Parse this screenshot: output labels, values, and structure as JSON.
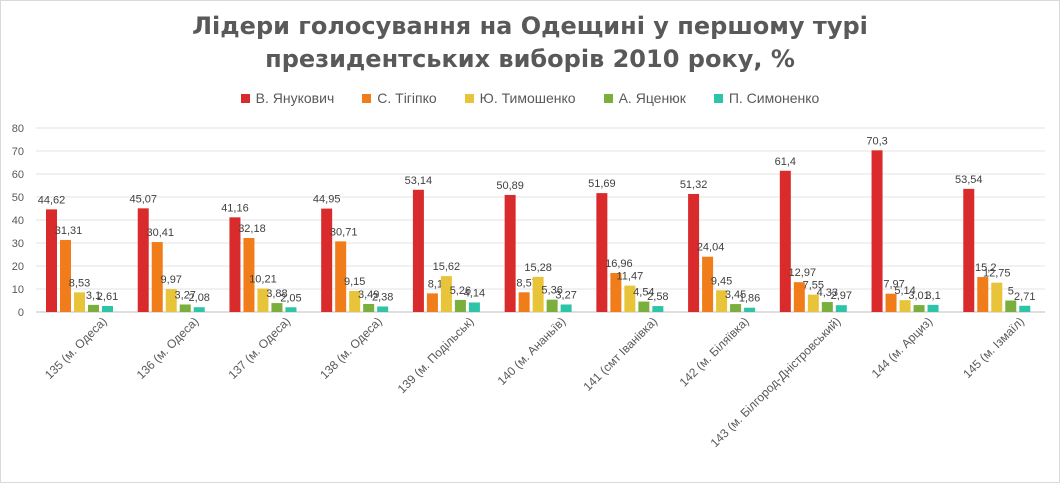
{
  "chart_data": {
    "type": "bar",
    "title_line1": "Лідери голосування на Одещині у першому турі",
    "title_line2": "президентських виборів 2010 року, %",
    "categories": [
      "135 (м. Одеса)",
      "136 (м. Одеса)",
      "137 (м. Одеса)",
      "138 (м. Одеса)",
      "139 (м. Подільськ)",
      "140 (м. Ананьїв)",
      "141 (смт Іванівка)",
      "142 (м. Біляївка)",
      "143 (м. Білгород-Дністровський)",
      "144 (м. Арциз)",
      "145 (м. Ізмаїл)"
    ],
    "series": [
      {
        "name": "В. Янукович",
        "color": "#d92b2b",
        "values": [
          44.62,
          45.07,
          41.16,
          44.95,
          53.14,
          50.89,
          51.69,
          51.32,
          61.4,
          70.3,
          53.54
        ]
      },
      {
        "name": "С. Тігіпко",
        "color": "#f07d1a",
        "values": [
          31.31,
          30.41,
          32.18,
          30.71,
          8.1,
          8.57,
          16.96,
          24.04,
          12.97,
          7.97,
          15.2
        ]
      },
      {
        "name": "Ю. Тимошенко",
        "color": "#e8c43a",
        "values": [
          8.53,
          9.97,
          10.21,
          9.15,
          15.62,
          15.28,
          11.47,
          9.45,
          7.55,
          5.14,
          12.75
        ]
      },
      {
        "name": "А. Яценюк",
        "color": "#7aae3d",
        "values": [
          3.1,
          3.27,
          3.88,
          3.49,
          5.26,
          5.36,
          4.54,
          3.45,
          4.33,
          3.01,
          5
        ]
      },
      {
        "name": "П. Симоненко",
        "color": "#2ec4a8",
        "values": [
          2.61,
          2.08,
          2.05,
          2.38,
          4.14,
          3.27,
          2.58,
          1.86,
          2.97,
          3.1,
          2.71
        ]
      }
    ],
    "labels": [
      [
        "44,62",
        "45,07",
        "41,16",
        "44,95",
        "53,14",
        "50,89",
        "51,69",
        "51,32",
        "61,4",
        "70,3",
        "53,54"
      ],
      [
        "31,31",
        "30,41",
        "32,18",
        "30,71",
        "8,1",
        "8,57",
        "16,96",
        "24,04",
        "12,97",
        "7,97",
        "15,2"
      ],
      [
        "8,53",
        "9,97",
        "10,21",
        "9,15",
        "15,62",
        "15,28",
        "11,47",
        "9,45",
        "7,55",
        "5,14",
        "12,75"
      ],
      [
        "3,1",
        "3,27",
        "3,88",
        "3,49",
        "5,26",
        "5,36",
        "4,54",
        "3,45",
        "4,33",
        "3,01",
        "5"
      ],
      [
        "2,61",
        "2,08",
        "2,05",
        "2,38",
        "4,14",
        "3,27",
        "2,58",
        "1,86",
        "2,97",
        "3,1",
        "2,71"
      ]
    ],
    "yticks": [
      0,
      10,
      20,
      30,
      40,
      50,
      60,
      70,
      80
    ],
    "ylim": [
      0,
      80
    ],
    "xlabel": "",
    "ylabel": "",
    "grid": true,
    "legend_position": "top-center"
  }
}
